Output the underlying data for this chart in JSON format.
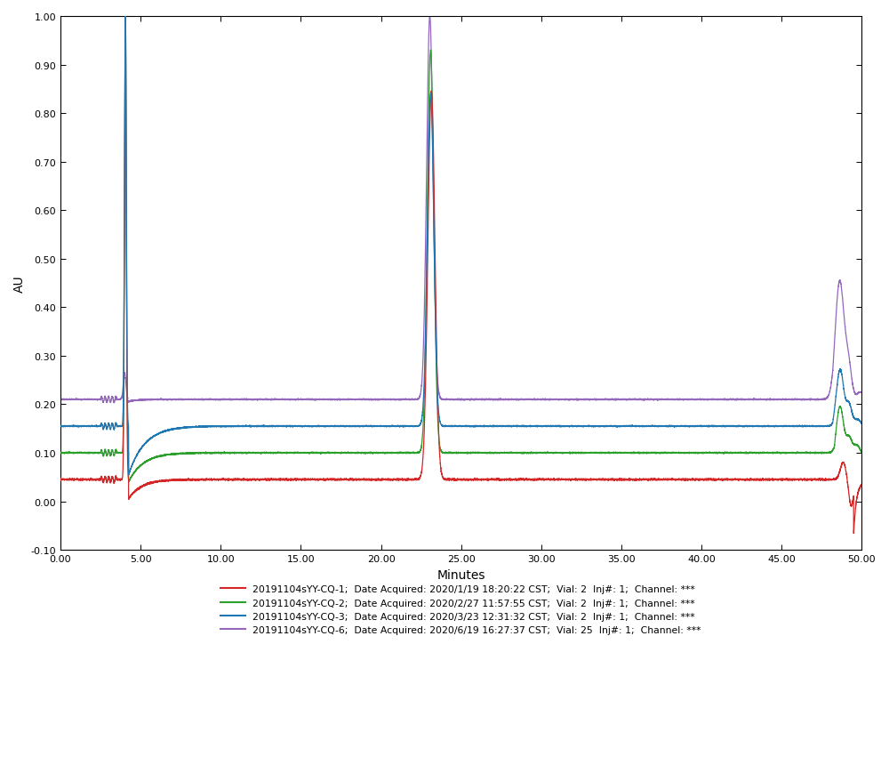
{
  "title": "",
  "xlabel": "Minutes",
  "ylabel": "AU",
  "xlim": [
    0.0,
    50.0
  ],
  "ylim": [
    -0.1,
    1.0
  ],
  "xticks": [
    0.0,
    5.0,
    10.0,
    15.0,
    20.0,
    25.0,
    30.0,
    35.0,
    40.0,
    45.0,
    50.0
  ],
  "yticks": [
    -0.1,
    0.0,
    0.1,
    0.2,
    0.3,
    0.4,
    0.5,
    0.6,
    0.7,
    0.8,
    0.9,
    1.0
  ],
  "xtick_labels": [
    "0.00",
    "5.00",
    "10.00",
    "15.00",
    "20.00",
    "25.00",
    "30.00",
    "35.00",
    "40.00",
    "45.00",
    "50.00"
  ],
  "ytick_labels": [
    "-0.10",
    "0.00",
    "0.10",
    "0.20",
    "0.30",
    "0.40",
    "0.50",
    "0.60",
    "0.70",
    "0.80",
    "0.90",
    "1.00"
  ],
  "legend_entries": [
    "20191104sYY-CQ-1;  Date Acquired: 2020/1/19 18:20:22 CST;  Vial: 2  Inj#: 1;  Channel: ***",
    "20191104sYY-CQ-2;  Date Acquired: 2020/2/27 11:57:55 CST;  Vial: 2  Inj#: 1;  Channel: ***",
    "20191104sYY-CQ-3;  Date Acquired: 2020/3/23 12:31:32 CST;  Vial: 2  Inj#: 1;  Channel: ***",
    "20191104sYY-CQ-6;  Date Acquired: 2020/6/19 16:27:37 CST;  Vial: 25  Inj#: 1;  Channel: ***"
  ],
  "line_colors": [
    "#d62728",
    "#2ca02c",
    "#1f77b4",
    "#9467bd"
  ],
  "background_color": "#ffffff"
}
